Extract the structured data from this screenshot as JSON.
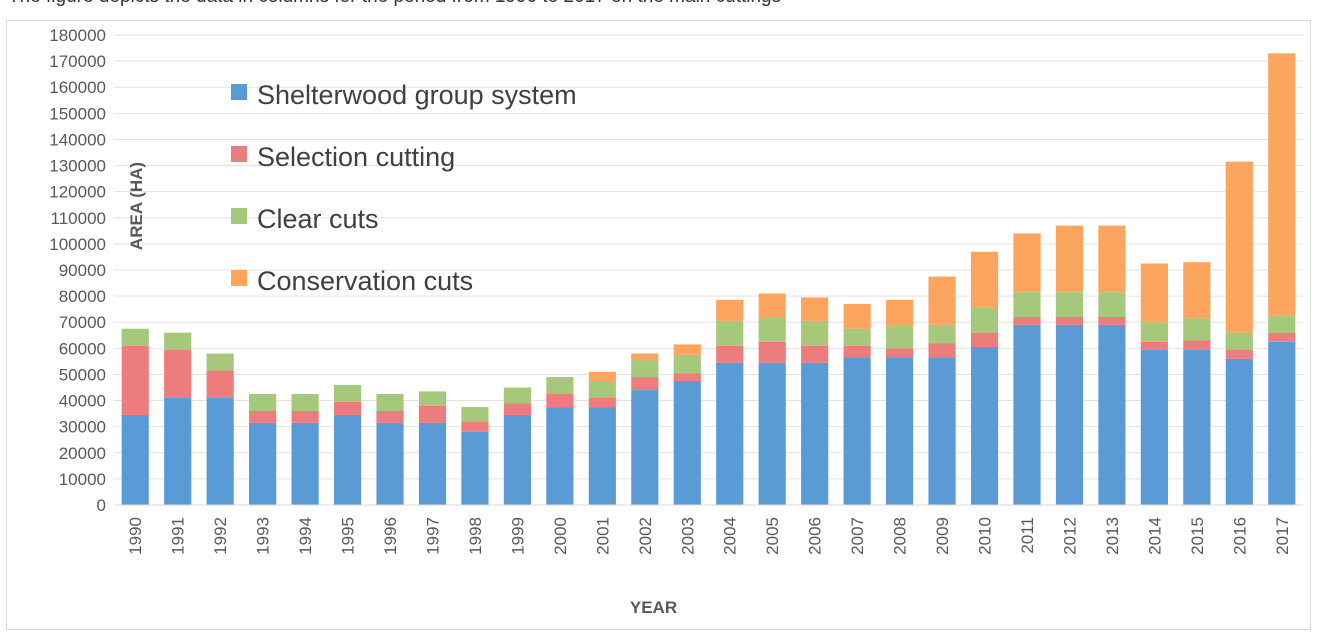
{
  "caption": "The figure depicts the data in columns for the period from 1990 to 2017 on the main cuttings",
  "chart_data": {
    "type": "bar",
    "stacked": true,
    "categories": [
      "1990",
      "1991",
      "1992",
      "1993",
      "1994",
      "1995",
      "1996",
      "1997",
      "1998",
      "1999",
      "2000",
      "2001",
      "2002",
      "2003",
      "2004",
      "2005",
      "2006",
      "2007",
      "2008",
      "2009",
      "2010",
      "2011",
      "2012",
      "2013",
      "2014",
      "2015",
      "2016",
      "2017"
    ],
    "series": [
      {
        "name": "Shelterwood group system",
        "color": "#5b9bd5",
        "values": [
          34500,
          41000,
          41000,
          31500,
          31500,
          34500,
          31500,
          31500,
          28000,
          34500,
          37500,
          37500,
          44000,
          47500,
          54500,
          54500,
          54500,
          56500,
          56500,
          56500,
          60500,
          69000,
          69000,
          69000,
          59500,
          59500,
          56000,
          62500
        ]
      },
      {
        "name": "Selection cutting",
        "color": "#ed7d7d",
        "values": [
          26500,
          18500,
          10500,
          4500,
          4500,
          5000,
          4500,
          6500,
          4000,
          4500,
          5000,
          3500,
          5000,
          3000,
          6500,
          8000,
          6500,
          4500,
          3500,
          5500,
          5500,
          3000,
          3000,
          3000,
          3000,
          3500,
          3500,
          3500
        ]
      },
      {
        "name": "Clear cuts",
        "color": "#a5c87a",
        "values": [
          6500,
          6500,
          6500,
          6500,
          6500,
          6500,
          6500,
          5500,
          5500,
          6000,
          6500,
          6500,
          6500,
          7000,
          9500,
          9500,
          9500,
          6500,
          8500,
          7000,
          9500,
          9500,
          9500,
          9500,
          7500,
          8500,
          6500,
          6500
        ]
      },
      {
        "name": "Conservation cuts",
        "color": "#fba55e",
        "values": [
          0,
          0,
          0,
          0,
          0,
          0,
          0,
          0,
          0,
          0,
          0,
          3500,
          2500,
          4000,
          8000,
          9000,
          9000,
          9500,
          10000,
          18500,
          21500,
          22500,
          25500,
          25500,
          22500,
          21500,
          65500,
          100500
        ]
      }
    ],
    "xlabel": "YEAR",
    "ylabel": "AREA  (HA)",
    "ylim": [
      0,
      180000
    ],
    "ytick_step": 10000,
    "grid": true,
    "legend_position": "top-left"
  }
}
